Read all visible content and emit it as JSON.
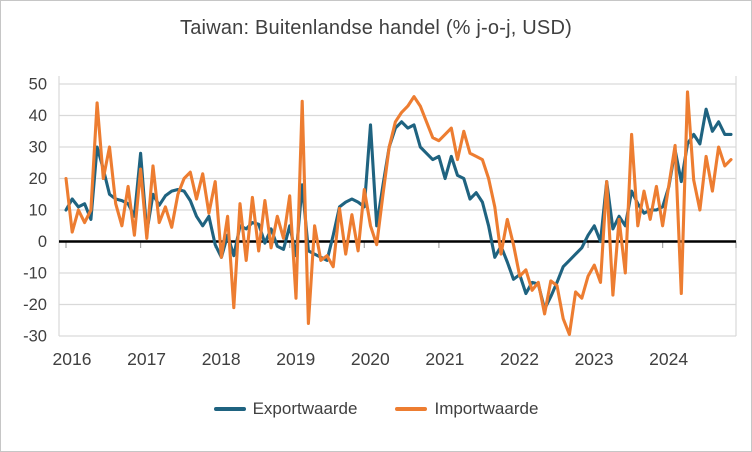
{
  "chart": {
    "title": "Taiwan: Buitenlandse handel (% j-o-j, USD)"
  },
  "colors": {
    "export_line": "#1f6380",
    "import_line": "#ed7d31",
    "gridline": "#d9d9d9",
    "zero_line": "#000000",
    "axis_text": "#404040",
    "tick_mark": "#a6a6a6"
  },
  "chart_data": {
    "type": "line",
    "title": "Taiwan: Buitenlandse handel (% j-o-j, USD)",
    "frequency": "monthly",
    "x_start": "2016-01",
    "x_end": "2024-12",
    "year_labels": [
      "2016",
      "2017",
      "2018",
      "2019",
      "2020",
      "2021",
      "2022",
      "2023",
      "2024"
    ],
    "y_ticks": [
      50,
      40,
      30,
      20,
      10,
      0,
      -10,
      -20,
      -30
    ],
    "ylim": [
      -30,
      50
    ],
    "ylabel": "% j-o-j, USD",
    "grid": true,
    "legend_position": "bottom",
    "series": [
      {
        "name": "Exportwaarde",
        "color": "#1f6380",
        "values": [
          10,
          13.5,
          11,
          12,
          7,
          30,
          23,
          15,
          13.5,
          13,
          12,
          8,
          28,
          3,
          15,
          11.5,
          14.5,
          16,
          16.5,
          16,
          13,
          8,
          5,
          8,
          -1,
          -5,
          2,
          -4.5,
          5,
          4,
          6,
          5.5,
          -0.5,
          4,
          -1.5,
          -2.5,
          5,
          -4.5,
          18,
          -3,
          -4,
          -5,
          -6,
          2,
          11,
          12.5,
          13.5,
          12.5,
          11,
          37,
          5,
          18,
          30,
          36,
          38,
          36,
          37,
          30,
          28,
          26,
          27,
          20,
          27,
          21,
          20,
          13.5,
          15.5,
          12.5,
          5,
          -5,
          -1.5,
          -6.5,
          -12,
          -10.5,
          -16.5,
          -13,
          -13.5,
          -21.5,
          -17.5,
          -13,
          -8,
          -6,
          -4,
          -2,
          2,
          5,
          0,
          19,
          4,
          8,
          5,
          16,
          12,
          9,
          10,
          10,
          11,
          17.5,
          29,
          19,
          31,
          34,
          31,
          42,
          35,
          38,
          34,
          34
        ]
      },
      {
        "name": "Importwaarde",
        "color": "#ed7d31",
        "values": [
          20,
          3,
          10,
          6,
          10,
          44,
          20,
          30,
          12,
          5,
          17.5,
          2,
          23,
          1,
          24,
          6,
          11,
          4.5,
          15,
          20,
          22,
          13.5,
          21.5,
          9,
          19,
          -5,
          8,
          -21,
          12,
          -6,
          14,
          -3,
          13,
          -2,
          8,
          1,
          14.5,
          -18,
          44.5,
          -26,
          5,
          -6,
          -4.5,
          -8,
          10.5,
          -4,
          8.5,
          -3,
          16.5,
          5,
          -1,
          15,
          30,
          38,
          41,
          43,
          46,
          43,
          38,
          33,
          32,
          34,
          36,
          26,
          35,
          28,
          27,
          26,
          20,
          11,
          -4,
          7,
          -1,
          -11,
          -9,
          -15.5,
          -13,
          -23,
          -12.5,
          -14,
          -24.5,
          -29.5,
          -16,
          -18,
          -11,
          -7.5,
          -13,
          19,
          -17,
          7,
          -10,
          34,
          5,
          16,
          7,
          17.5,
          5,
          18,
          30.5,
          -16.5,
          47.5,
          19.5,
          10,
          27,
          16,
          30,
          24,
          26
        ]
      }
    ]
  }
}
